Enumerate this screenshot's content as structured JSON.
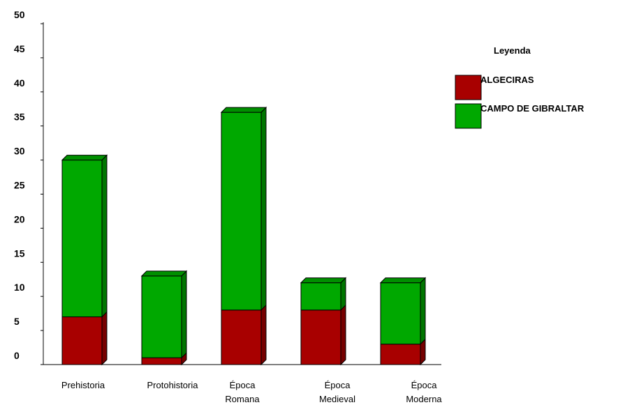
{
  "chart_data": {
    "type": "bar",
    "stacked": true,
    "style": "3d",
    "categories": [
      "Prehistoria",
      "Protohistoria",
      "Época Romana",
      "Época Medieval",
      "Época Moderna"
    ],
    "series": [
      {
        "name": "ALGECIRAS",
        "values": [
          7,
          1,
          8,
          8,
          3
        ],
        "color": "#A80000"
      },
      {
        "name": "CAMPO DE GIBRALTAR",
        "values": [
          23,
          12,
          29,
          4,
          9
        ],
        "color": "#00A800"
      }
    ],
    "ylim": [
      0,
      50
    ],
    "yticks": [
      "0",
      "5",
      "10",
      "15",
      "20",
      "25",
      "30",
      "35",
      "40",
      "45",
      "50"
    ],
    "legend_title": "Leyenda",
    "legend_position": "right",
    "grid": false
  }
}
